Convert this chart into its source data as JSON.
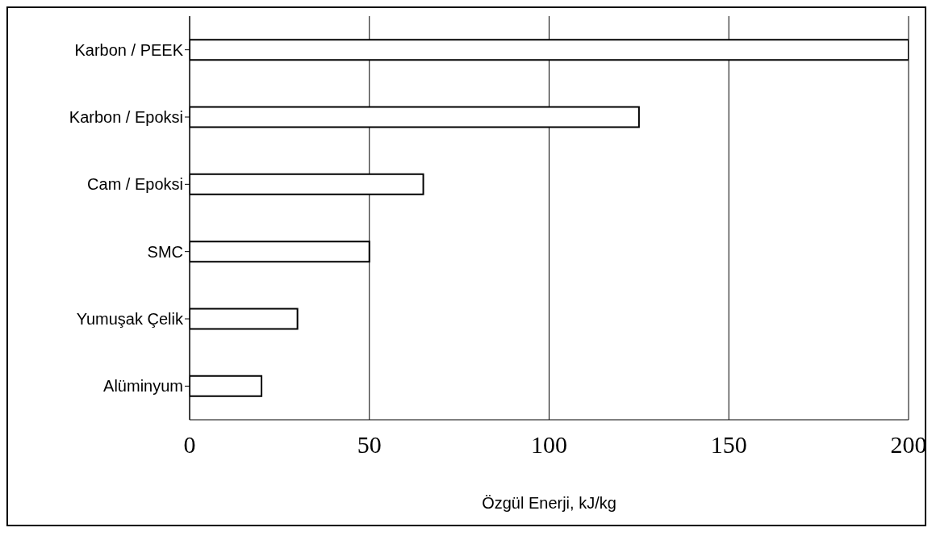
{
  "chart_data": {
    "type": "bar",
    "orientation": "horizontal",
    "categories": [
      "Karbon / PEEK",
      "Karbon / Epoksi",
      "Cam / Epoksi",
      "SMC",
      "Yumuşak Çelik",
      "Alüminyum"
    ],
    "values": [
      200,
      125,
      65,
      50,
      30,
      20
    ],
    "color": "#ffffff",
    "xlim": [
      0,
      200
    ],
    "xticks": [
      0,
      50,
      100,
      150,
      200
    ],
    "grid": "x",
    "xlabel": "Özgül Enerji, kJ/kg"
  }
}
